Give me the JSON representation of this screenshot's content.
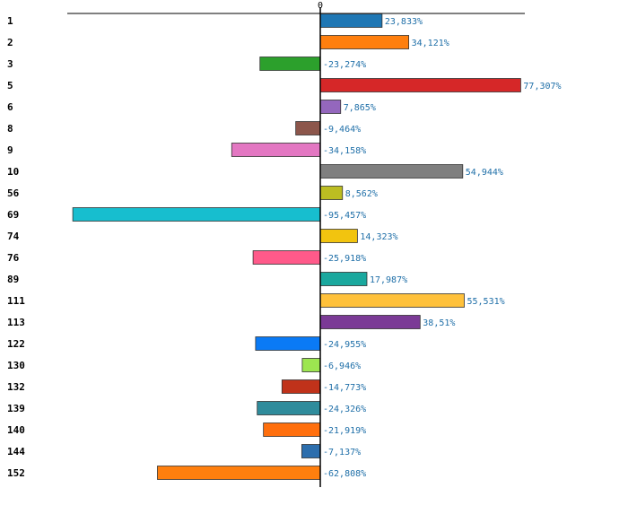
{
  "chart_data": {
    "type": "bar",
    "orientation": "horizontal",
    "title": "",
    "xlabel": "",
    "ylabel": "",
    "value_suffix": "%",
    "xlim": [
      -100,
      82
    ],
    "zero_tick_label": "0",
    "categories": [
      "1",
      "2",
      "3",
      "5",
      "6",
      "8",
      "9",
      "10",
      "56",
      "69",
      "74",
      "76",
      "89",
      "111",
      "113",
      "122",
      "130",
      "132",
      "139",
      "140",
      "144",
      "152"
    ],
    "values": [
      23.833,
      34.121,
      -23.274,
      77.307,
      7.865,
      -9.464,
      -34.158,
      54.944,
      8.562,
      -95.457,
      14.323,
      -25.918,
      17.987,
      55.531,
      38.51,
      -24.955,
      -6.946,
      -14.773,
      -24.326,
      -21.919,
      -7.137,
      -62.808
    ],
    "value_labels": [
      "23,833%",
      "34,121%",
      "-23,274%",
      "77,307%",
      "7,865%",
      "-9,464%",
      "-34,158%",
      "54,944%",
      "8,562%",
      "-95,457%",
      "14,323%",
      "-25,918%",
      "17,987%",
      "55,531%",
      "38,51%",
      "-24,955%",
      "-6,946%",
      "-14,773%",
      "-24,326%",
      "-21,919%",
      "-7,137%",
      "-62,808%"
    ],
    "colors": [
      "#1f77b4",
      "#ff7f0e",
      "#2ca02c",
      "#d62728",
      "#9467bd",
      "#8c564b",
      "#e377c2",
      "#7f7f7f",
      "#bcbd22",
      "#17becf",
      "#f2c40f",
      "#ff5a8a",
      "#1aa89e",
      "#ffc13b",
      "#7b3a96",
      "#0a7af5",
      "#9de650",
      "#c0321a",
      "#2f8c9c",
      "#ff6f0d",
      "#2c6ead",
      "#ff7f0e"
    ],
    "grid": false,
    "legend": "none"
  }
}
